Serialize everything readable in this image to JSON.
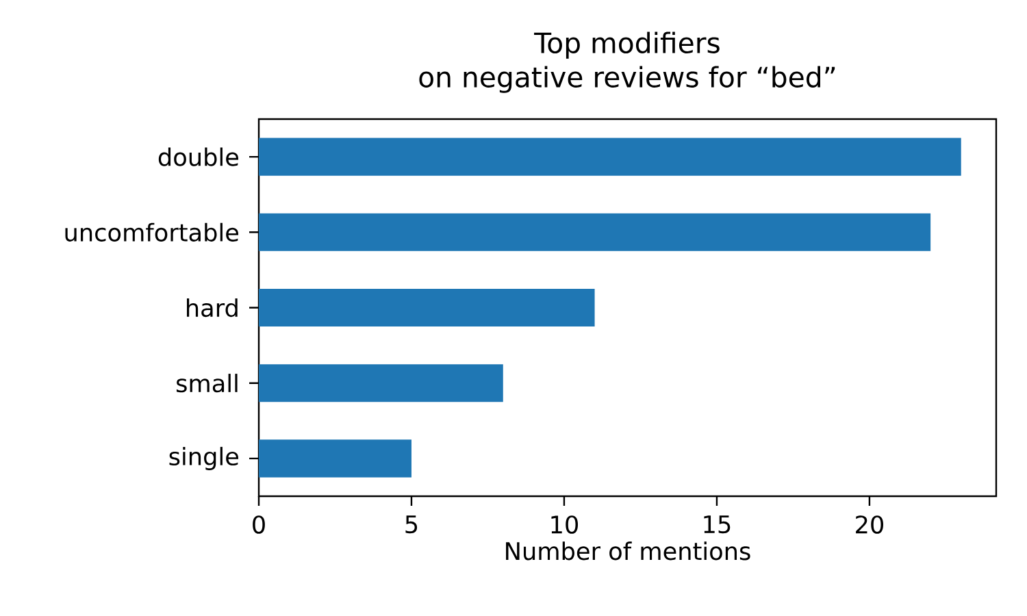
{
  "chart_data": {
    "type": "bar",
    "orientation": "horizontal",
    "title": "Top modifiers",
    "subtitle": "on negative reviews for “bed”",
    "xlabel": "Number of mentions",
    "categories": [
      "double",
      "uncomfortable",
      "hard",
      "small",
      "single"
    ],
    "values": [
      23,
      22,
      11,
      8,
      5
    ],
    "color": "#1f77b4",
    "xlim": [
      0,
      24.15
    ],
    "xticks": [
      0,
      5,
      10,
      15,
      20
    ],
    "grid": false
  }
}
